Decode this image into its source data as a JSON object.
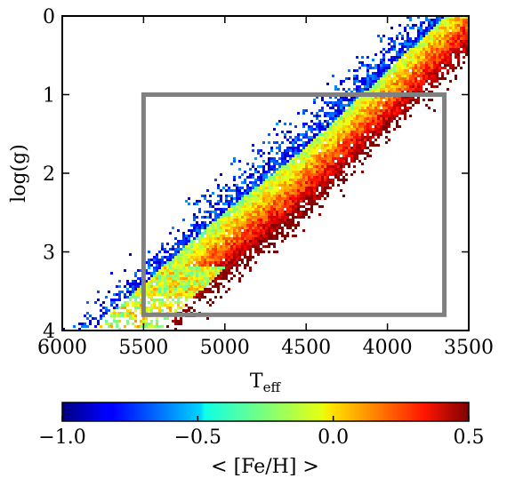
{
  "chart_data": {
    "type": "heatmap",
    "title": "",
    "xlabel": "T",
    "xlabel_sub": "eff",
    "ylabel": "log(g)",
    "x_reversed": true,
    "y_reversed": true,
    "xlim": [
      6000,
      3500
    ],
    "ylim": [
      0,
      4
    ],
    "xticks": [
      6000,
      5500,
      5000,
      4500,
      4000,
      3500
    ],
    "xtick_labels": [
      "6000",
      "5500",
      "5000",
      "4500",
      "4000",
      "3500"
    ],
    "yticks": [
      0,
      1,
      2,
      3,
      4
    ],
    "ytick_labels": [
      "0",
      "1",
      "2",
      "3",
      "4"
    ],
    "colormap": "jet",
    "colorbar": {
      "label": "< [Fe/H] >",
      "range": [
        -1.0,
        0.5
      ],
      "ticks": [
        -1.0,
        -0.5,
        0.0,
        0.5
      ],
      "tick_labels": [
        "−1.0",
        "−0.5",
        "0.0",
        "0.5"
      ],
      "orientation": "horizontal"
    },
    "selection_box": {
      "teff_range": [
        5500,
        3650
      ],
      "logg_range": [
        1.0,
        3.8
      ],
      "color": "#808080"
    },
    "density_ridge": {
      "description_points_teff_logg": [
        [
          3550,
          0.1
        ],
        [
          4000,
          1.0
        ],
        [
          4500,
          2.0
        ],
        [
          5000,
          2.85
        ],
        [
          5400,
          3.6
        ]
      ],
      "metal_rich_side": "lower-right",
      "metal_poor_side": "upper-left"
    }
  }
}
